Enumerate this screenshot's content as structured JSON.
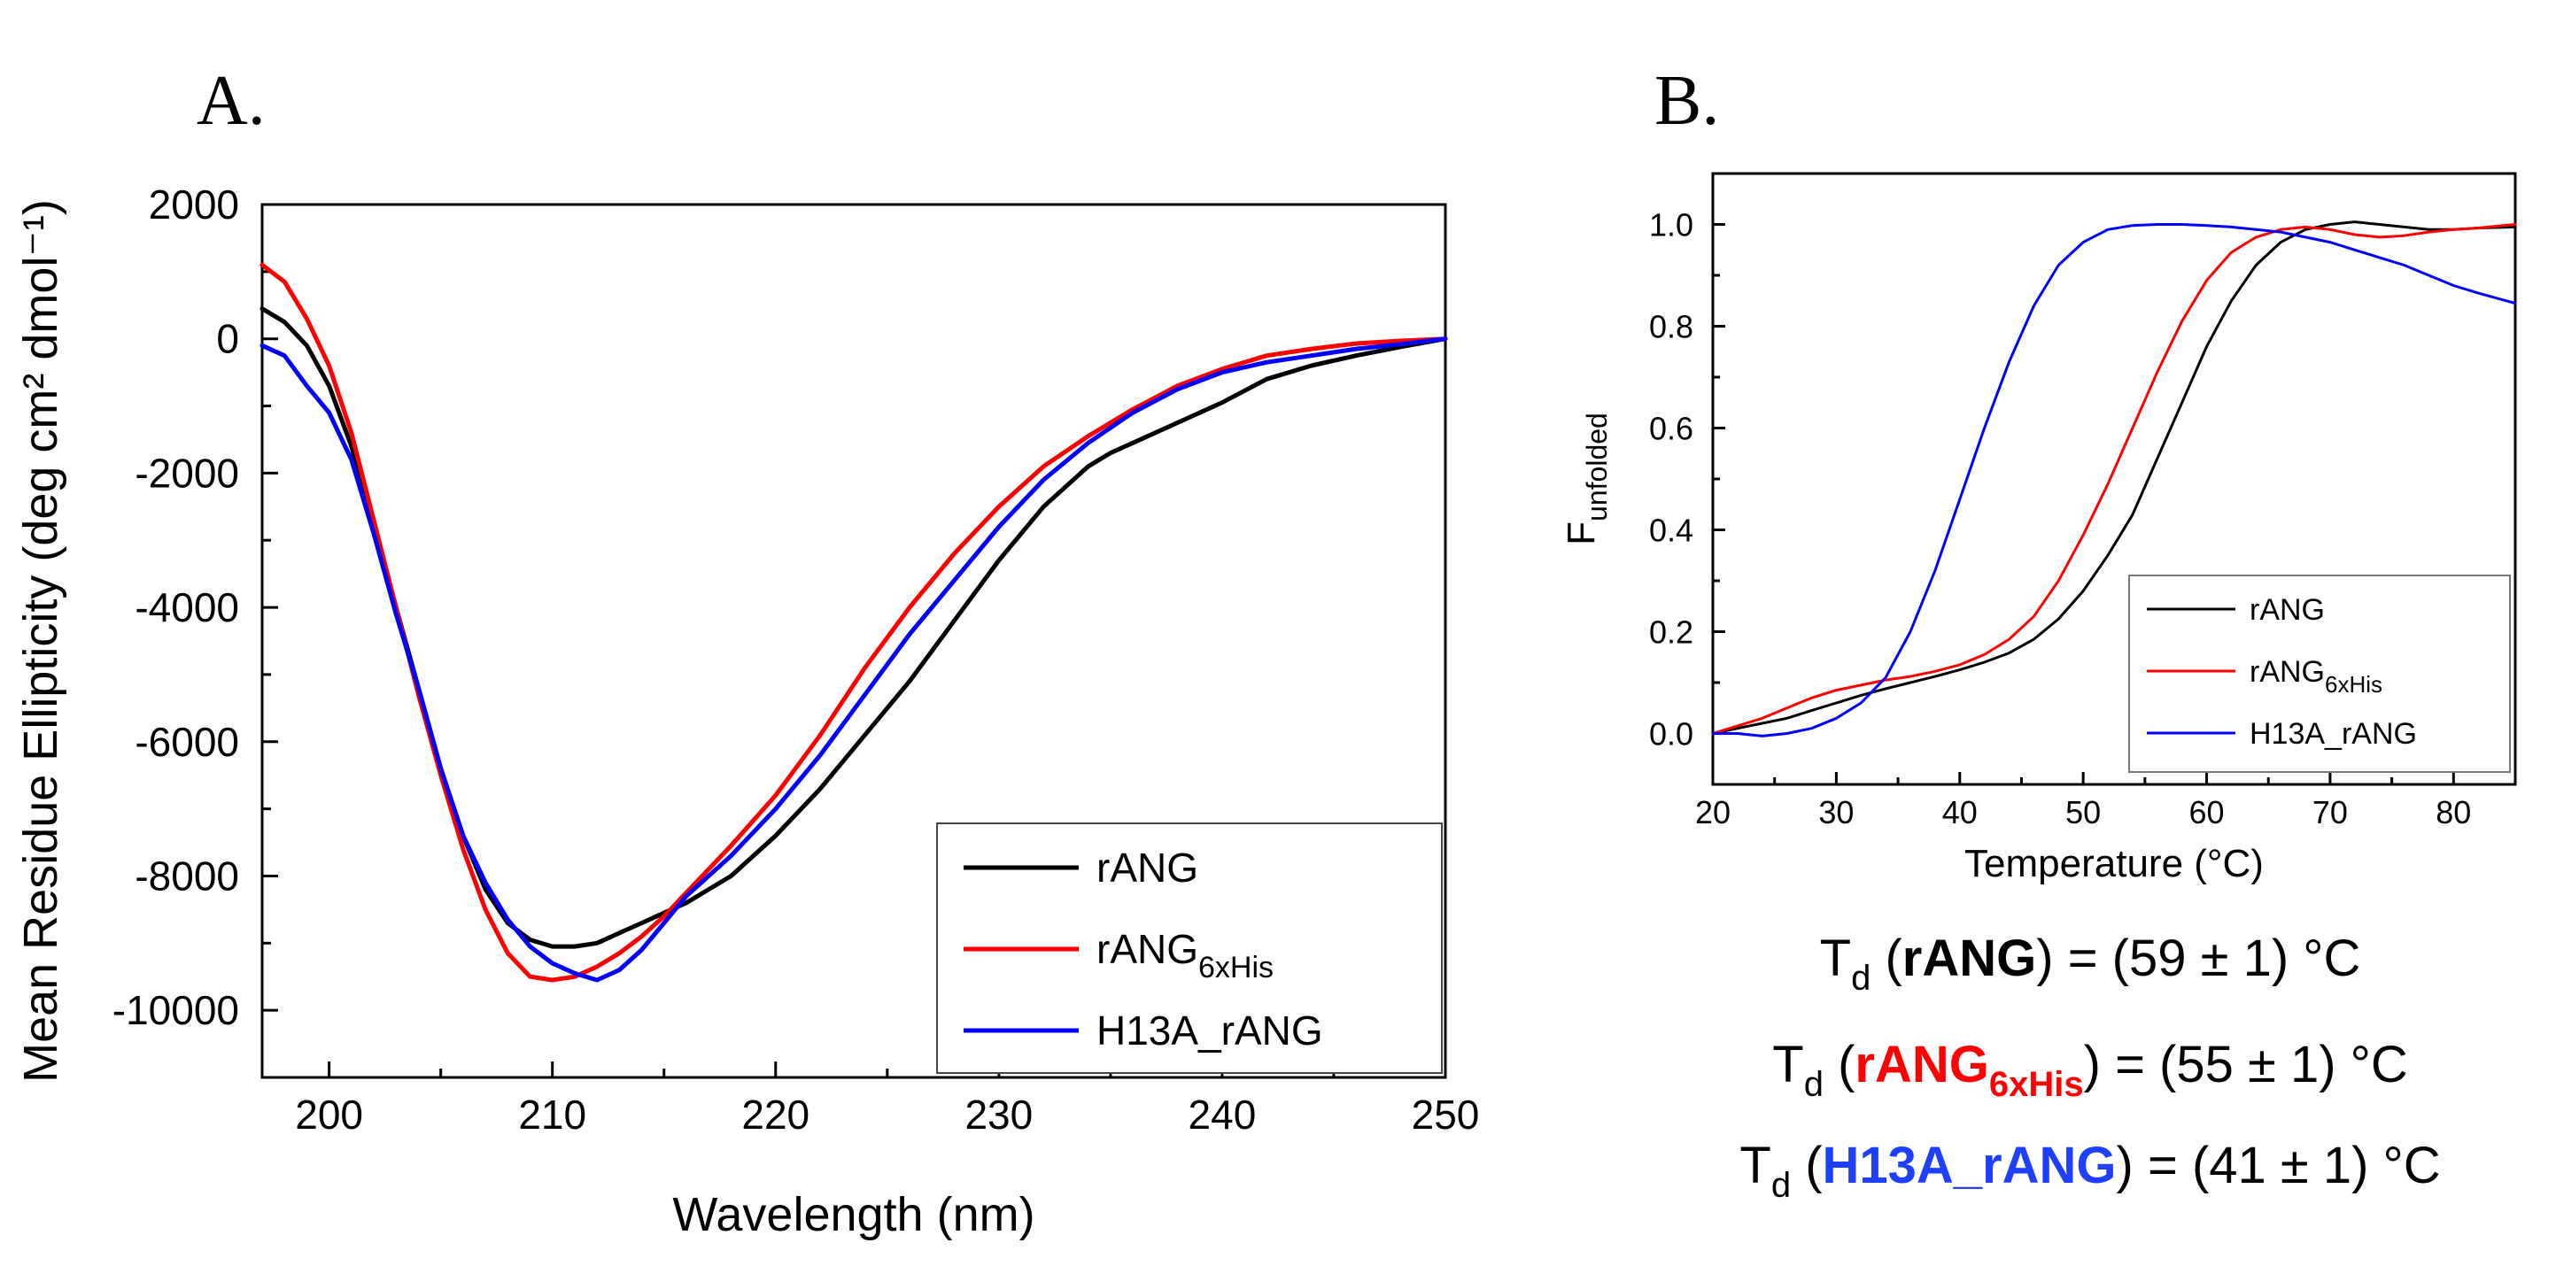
{
  "figure": {
    "panel_a_label": "A.",
    "panel_b_label": "B."
  },
  "chart_data": [
    {
      "type": "line",
      "panel": "A.",
      "xlabel": "Wavelength (nm)",
      "ylabel": "Mean Residue Ellipticity (deg cm² dmol⁻¹)",
      "xlim": [
        197,
        250
      ],
      "ylim": [
        -11000,
        2000
      ],
      "xticks": [
        200,
        210,
        220,
        230,
        240,
        250
      ],
      "yticks": [
        2000,
        0,
        -2000,
        -4000,
        -6000,
        -8000,
        -10000
      ],
      "legend_position": "bottom-right",
      "series": [
        {
          "name": "rANG",
          "sub": "",
          "color": "#000000",
          "x": [
            197,
            198,
            199,
            200,
            201,
            202,
            203,
            204,
            205,
            206,
            207,
            208,
            209,
            210,
            211,
            212,
            213,
            214,
            215,
            216,
            218,
            220,
            222,
            224,
            226,
            228,
            230,
            232,
            234,
            235,
            236,
            238,
            240,
            242,
            244,
            246,
            248,
            250
          ],
          "y": [
            450,
            250,
            -100,
            -700,
            -1600,
            -2800,
            -4000,
            -5200,
            -6400,
            -7400,
            -8200,
            -8700,
            -8950,
            -9050,
            -9050,
            -9000,
            -8850,
            -8700,
            -8550,
            -8400,
            -8000,
            -7400,
            -6700,
            -5900,
            -5100,
            -4200,
            -3300,
            -2500,
            -1900,
            -1700,
            -1550,
            -1250,
            -950,
            -600,
            -400,
            -250,
            -120,
            0
          ]
        },
        {
          "name": "rANG",
          "sub": "6xHis",
          "color": "#ff0000",
          "x": [
            197,
            198,
            199,
            200,
            201,
            202,
            203,
            204,
            205,
            206,
            207,
            208,
            209,
            210,
            211,
            212,
            213,
            214,
            215,
            216,
            218,
            220,
            222,
            224,
            226,
            228,
            230,
            232,
            234,
            236,
            238,
            240,
            242,
            244,
            246,
            248,
            250
          ],
          "y": [
            1100,
            850,
            300,
            -400,
            -1400,
            -2700,
            -4000,
            -5300,
            -6500,
            -7600,
            -8500,
            -9150,
            -9500,
            -9550,
            -9500,
            -9350,
            -9150,
            -8900,
            -8600,
            -8250,
            -7550,
            -6800,
            -5900,
            -4900,
            -4000,
            -3200,
            -2500,
            -1900,
            -1450,
            -1050,
            -700,
            -450,
            -250,
            -150,
            -70,
            -30,
            0
          ]
        },
        {
          "name": "H13A_rANG",
          "sub": "",
          "color": "#0000ff",
          "x": [
            197,
            198,
            199,
            200,
            201,
            202,
            203,
            204,
            205,
            206,
            207,
            208,
            209,
            210,
            211,
            212,
            213,
            214,
            215,
            216,
            218,
            220,
            222,
            224,
            226,
            228,
            230,
            232,
            234,
            236,
            238,
            240,
            242,
            244,
            246,
            248,
            250
          ],
          "y": [
            -100,
            -250,
            -700,
            -1100,
            -1800,
            -2900,
            -4100,
            -5200,
            -6400,
            -7400,
            -8100,
            -8650,
            -9050,
            -9300,
            -9450,
            -9550,
            -9400,
            -9100,
            -8700,
            -8300,
            -7700,
            -7000,
            -6200,
            -5300,
            -4400,
            -3600,
            -2800,
            -2100,
            -1550,
            -1100,
            -750,
            -500,
            -350,
            -250,
            -150,
            -80,
            0
          ]
        }
      ]
    },
    {
      "type": "line",
      "panel": "B.",
      "xlabel": "Temperature (°C)",
      "ylabel": "F",
      "ylabel_sub": "unfolded",
      "xlim": [
        20,
        85
      ],
      "ylim": [
        -0.1,
        1.1
      ],
      "xticks": [
        20,
        30,
        40,
        50,
        60,
        70,
        80
      ],
      "yticks": [
        0.0,
        0.2,
        0.4,
        0.6,
        0.8,
        1.0
      ],
      "legend_position": "bottom-right",
      "series": [
        {
          "name": "rANG",
          "sub": "",
          "color": "#000000",
          "x": [
            20,
            22,
            24,
            26,
            28,
            30,
            32,
            34,
            36,
            38,
            40,
            42,
            44,
            46,
            48,
            50,
            52,
            54,
            56,
            58,
            60,
            62,
            64,
            66,
            68,
            70,
            72,
            74,
            76,
            78,
            80,
            82,
            85
          ],
          "y": [
            0.0,
            0.01,
            0.02,
            0.03,
            0.045,
            0.06,
            0.075,
            0.088,
            0.1,
            0.112,
            0.125,
            0.14,
            0.158,
            0.185,
            0.225,
            0.28,
            0.35,
            0.43,
            0.54,
            0.65,
            0.76,
            0.85,
            0.92,
            0.965,
            0.99,
            1.0,
            1.005,
            1.0,
            0.995,
            0.99,
            0.99,
            0.993,
            0.995
          ]
        },
        {
          "name": "rANG",
          "sub": "6xHis",
          "color": "#ff0000",
          "x": [
            20,
            22,
            24,
            26,
            28,
            30,
            32,
            34,
            36,
            38,
            40,
            42,
            44,
            46,
            48,
            50,
            52,
            54,
            56,
            58,
            60,
            62,
            64,
            66,
            68,
            70,
            72,
            74,
            76,
            78,
            80,
            82,
            85
          ],
          "y": [
            0.0,
            0.015,
            0.03,
            0.05,
            0.07,
            0.085,
            0.095,
            0.105,
            0.112,
            0.122,
            0.135,
            0.155,
            0.185,
            0.23,
            0.3,
            0.39,
            0.49,
            0.6,
            0.71,
            0.81,
            0.89,
            0.945,
            0.975,
            0.99,
            0.995,
            0.99,
            0.98,
            0.975,
            0.978,
            0.985,
            0.99,
            0.993,
            1.0
          ]
        },
        {
          "name": "H13A_rANG",
          "sub": "",
          "color": "#0000ff",
          "x": [
            20,
            22,
            24,
            26,
            28,
            30,
            32,
            34,
            36,
            38,
            40,
            42,
            44,
            46,
            48,
            50,
            52,
            54,
            56,
            58,
            60,
            62,
            64,
            66,
            68,
            70,
            72,
            74,
            76,
            78,
            80,
            82,
            85
          ],
          "y": [
            0.0,
            0.0,
            -0.005,
            0.0,
            0.01,
            0.03,
            0.06,
            0.11,
            0.2,
            0.32,
            0.46,
            0.6,
            0.73,
            0.84,
            0.92,
            0.965,
            0.99,
            0.998,
            1.0,
            1.0,
            0.998,
            0.995,
            0.99,
            0.985,
            0.975,
            0.965,
            0.95,
            0.935,
            0.92,
            0.9,
            0.88,
            0.865,
            0.845
          ]
        }
      ]
    }
  ],
  "td_results": [
    {
      "prefix": "T",
      "prefix_sub": "d",
      "open": " (",
      "name": "rANG",
      "name_sub": "",
      "close": ")",
      "value": " = (59 ± 1) °C",
      "color": "#000000"
    },
    {
      "prefix": "T",
      "prefix_sub": "d",
      "open": " (",
      "name": "rANG",
      "name_sub": "6xHis",
      "close": ")",
      "value": " = (55 ± 1) °C",
      "color": "#ff0000"
    },
    {
      "prefix": "T",
      "prefix_sub": "d",
      "open": " (",
      "name": "H13A_rANG",
      "name_sub": "",
      "close": ")",
      "value": " = (41 ± 1) °C",
      "color": "#1f3fff"
    }
  ]
}
